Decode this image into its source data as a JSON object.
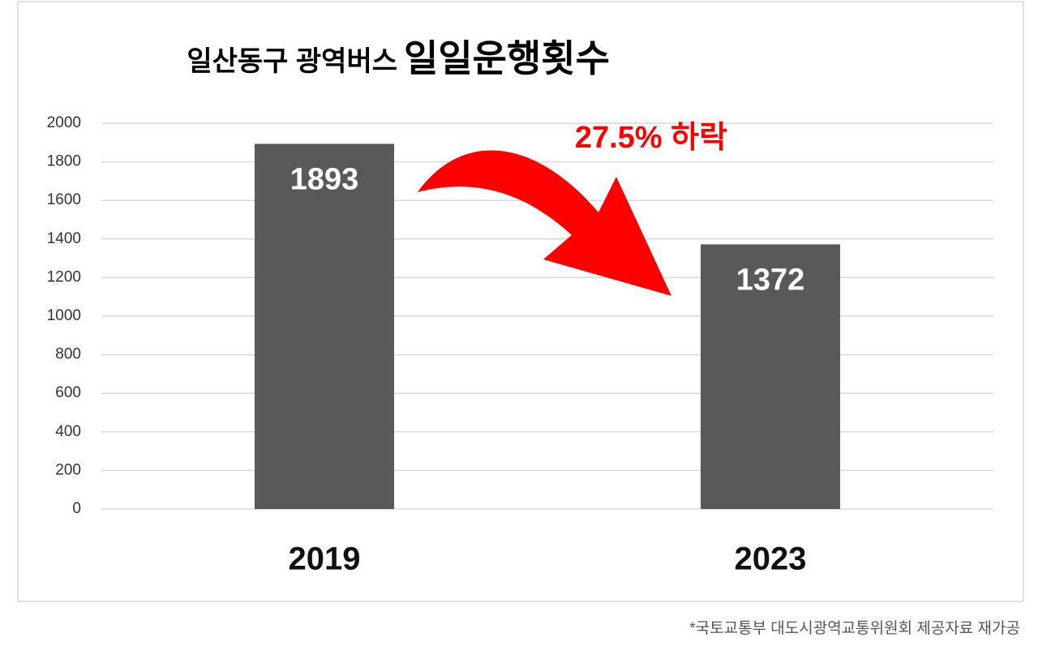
{
  "chart_data": {
    "type": "bar",
    "title": "일산동구 광역버스",
    "title_emphasis": "일일운행횟수",
    "annotation": "27.5% 하락",
    "source_note": "*국토교통부 대도시광역교통위원회 제공자료 재가공",
    "categories": [
      "2019",
      "2023"
    ],
    "values": [
      1893,
      1372
    ],
    "color": "#595959",
    "ylim": [
      0,
      2000
    ],
    "yticks": [
      0,
      200,
      400,
      600,
      800,
      1000,
      1200,
      1400,
      1600,
      1800,
      2000
    ],
    "grid": true
  }
}
